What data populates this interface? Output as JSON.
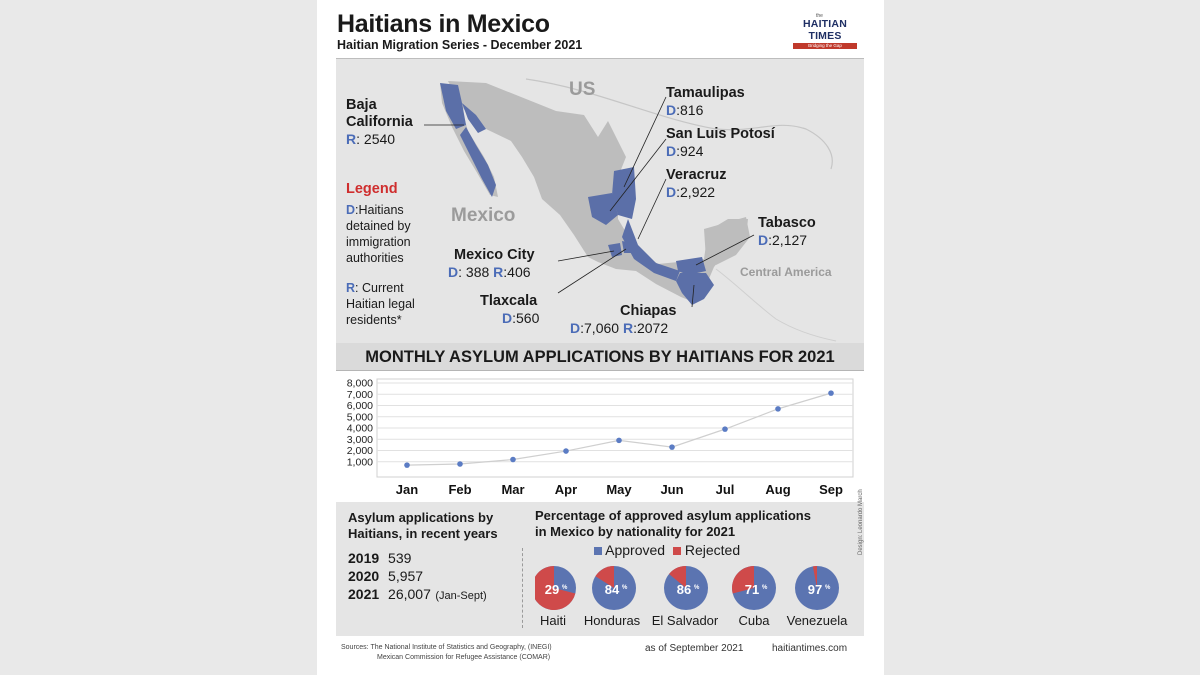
{
  "header": {
    "title": "Haitians in Mexico",
    "subtitle": "Haitian Migration Series - December 2021",
    "brand": {
      "top": "the",
      "name": "HAITIAN TIMES",
      "tagline": "Bridging the Gap"
    }
  },
  "map": {
    "country_us": "US",
    "country_mexico": "Mexico",
    "region_central_america": "Central America",
    "states": {
      "baja": {
        "name": "Baja California",
        "value": "2540"
      },
      "tamaulipas": {
        "name": "Tamaulipas",
        "value": "816"
      },
      "slp": {
        "name": "San Luis Potosí",
        "value": "924"
      },
      "veracruz": {
        "name": "Veracruz",
        "value": "2,922"
      },
      "tabasco": {
        "name": "Tabasco",
        "value": "2,127"
      },
      "mexico_city": {
        "name": "Mexico City",
        "d_value": "388",
        "r_value": "406"
      },
      "tlaxcala": {
        "name": "Tlaxcala",
        "value": "560"
      },
      "chiapas": {
        "name": "Chiapas",
        "d_value": "7,060",
        "r_value": "2072"
      }
    },
    "legend": {
      "title": "Legend",
      "d_key": "D",
      "d_line1": ":Haitians",
      "d_line2": "detained by",
      "d_line3": "immigration",
      "d_line4": "authorities",
      "r_key": "R",
      "r_line1": ": Current",
      "r_line2": "Haitian legal",
      "r_line3": "residents*"
    }
  },
  "banner": "MONTHLY ASYLUM APPLICATIONS BY HAITIANS FOR 2021",
  "chart_data": [
    {
      "type": "line",
      "title": "MONTHLY ASYLUM APPLICATIONS BY HAITIANS FOR 2021",
      "categories": [
        "Jan",
        "Feb",
        "Mar",
        "Apr",
        "May",
        "Jun",
        "Jul",
        "Aug",
        "Sep"
      ],
      "values": [
        700,
        800,
        1200,
        1950,
        2900,
        2300,
        3900,
        5700,
        7100
      ],
      "yticks": [
        "1,000",
        "2,000",
        "3,000",
        "4,000",
        "5,000",
        "6,000",
        "7,000",
        "8,000"
      ],
      "ylim": [
        0,
        8000
      ],
      "grid": true,
      "color": "#5b7cc4"
    },
    {
      "type": "pie",
      "title": "Percentage of approved asylum applications in Mexico by nationality for 2021",
      "legend": [
        "Approved",
        "Rejected"
      ],
      "colors": {
        "approved": "#5b74b1",
        "rejected": "#cf4a4a"
      },
      "items": [
        {
          "name": "Haiti",
          "approved": 29,
          "label": "29"
        },
        {
          "name": "Honduras",
          "approved": 84,
          "label": "84"
        },
        {
          "name": "El Salvador",
          "approved": 86,
          "label": "86"
        },
        {
          "name": "Cuba",
          "approved": 71,
          "label": "71"
        },
        {
          "name": "Venezuela",
          "approved": 97,
          "label": "97"
        }
      ]
    }
  ],
  "stats": {
    "heading_line1": "Asylum applications by",
    "heading_line2": "Haitians, in recent years",
    "rows": [
      {
        "year": "2019",
        "value": "539",
        "note": ""
      },
      {
        "year": "2020",
        "value": "5,957",
        "note": ""
      },
      {
        "year": "2021",
        "value": "26,007",
        "note": "(Jan-Sept)"
      }
    ],
    "pie_heading_line1": "Percentage of approved asylum applications",
    "pie_heading_line2": "in Mexico by nationality for 2021",
    "approved_label": "Approved",
    "rejected_label": "Rejected",
    "percent_symbol": "%"
  },
  "footer": {
    "sources_line1": "Sources: The National Institute of Statistics and Geography,  (INEGI)",
    "sources_line2": "Mexican Commission for Refugee Assistance (COMAR)",
    "as_of": "as of September 2021",
    "site": "haitiantimes.com",
    "design_credit": "Design: Leonardo March"
  }
}
